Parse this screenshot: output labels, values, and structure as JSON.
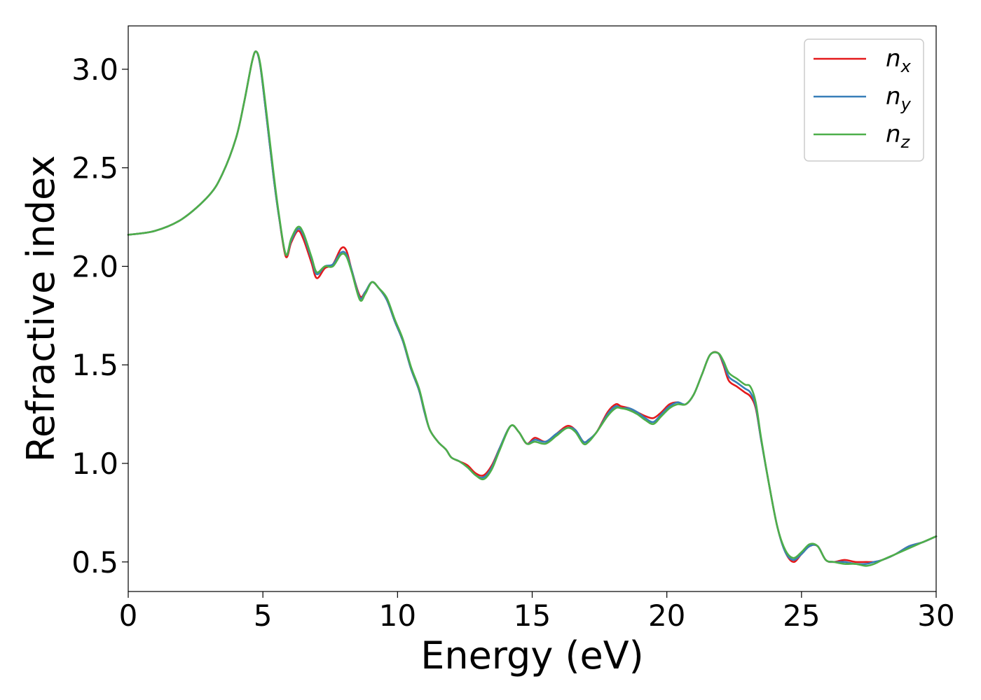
{
  "chart_data": {
    "type": "line",
    "xlabel": "Energy (eV)",
    "ylabel": "Refractive index",
    "xlim": [
      0,
      30
    ],
    "ylim": [
      0.35,
      3.22
    ],
    "xticks": [
      0,
      5,
      10,
      15,
      20,
      25,
      30
    ],
    "xtick_labels": [
      "0",
      "5",
      "10",
      "15",
      "20",
      "25",
      "30"
    ],
    "yticks": [
      0.5,
      1.0,
      1.5,
      2.0,
      2.5,
      3.0
    ],
    "ytick_labels": [
      "0.5",
      "1.0",
      "1.5",
      "2.0",
      "2.5",
      "3.0"
    ],
    "grid": false,
    "legend_position": "top-right",
    "series": [
      {
        "name": "n_x",
        "label_main": "n",
        "label_sub": "x",
        "color": "#e41a1c",
        "x": [
          0,
          1,
          2,
          3,
          3.5,
          4,
          4.3,
          4.6,
          4.75,
          4.9,
          5.1,
          5.4,
          5.6,
          5.85,
          6.05,
          6.3,
          6.5,
          6.8,
          7.0,
          7.3,
          7.6,
          7.9,
          8.1,
          8.3,
          8.6,
          8.8,
          9.05,
          9.3,
          9.6,
          9.9,
          10.2,
          10.5,
          10.8,
          11.0,
          11.2,
          11.5,
          11.8,
          12.0,
          12.3,
          12.6,
          12.9,
          13.2,
          13.5,
          13.8,
          14.2,
          14.5,
          14.8,
          15.1,
          15.5,
          15.9,
          16.3,
          16.6,
          16.9,
          17.1,
          17.4,
          17.8,
          18.1,
          18.3,
          18.6,
          18.9,
          19.2,
          19.5,
          19.8,
          20.1,
          20.4,
          20.7,
          21.0,
          21.3,
          21.6,
          21.9,
          22.1,
          22.3,
          22.6,
          22.9,
          23.1,
          23.3,
          23.5,
          23.8,
          24.1,
          24.4,
          24.7,
          25.0,
          25.3,
          25.6,
          25.9,
          26.2,
          26.6,
          27.0,
          27.4,
          27.7,
          28.0,
          28.5,
          29.0,
          29.5,
          30.0
        ],
        "y": [
          2.16,
          2.18,
          2.24,
          2.36,
          2.47,
          2.65,
          2.83,
          3.04,
          3.09,
          3.02,
          2.8,
          2.45,
          2.25,
          2.05,
          2.12,
          2.18,
          2.14,
          2.02,
          1.94,
          1.99,
          2.01,
          2.09,
          2.08,
          1.98,
          1.85,
          1.87,
          1.92,
          1.89,
          1.83,
          1.72,
          1.62,
          1.48,
          1.37,
          1.26,
          1.17,
          1.11,
          1.07,
          1.03,
          1.01,
          0.99,
          0.95,
          0.94,
          0.99,
          1.08,
          1.19,
          1.16,
          1.1,
          1.13,
          1.11,
          1.15,
          1.19,
          1.17,
          1.11,
          1.12,
          1.16,
          1.26,
          1.3,
          1.29,
          1.28,
          1.26,
          1.24,
          1.23,
          1.26,
          1.3,
          1.31,
          1.3,
          1.35,
          1.45,
          1.55,
          1.56,
          1.5,
          1.42,
          1.39,
          1.36,
          1.34,
          1.28,
          1.12,
          0.89,
          0.68,
          0.55,
          0.5,
          0.54,
          0.58,
          0.58,
          0.51,
          0.5,
          0.51,
          0.5,
          0.5,
          0.5,
          0.51,
          0.54,
          0.58,
          0.6,
          0.63
        ]
      },
      {
        "name": "n_y",
        "label_main": "n",
        "label_sub": "y",
        "color": "#377eb8",
        "x": [
          0,
          1,
          2,
          3,
          3.5,
          4,
          4.3,
          4.6,
          4.75,
          4.9,
          5.1,
          5.4,
          5.6,
          5.85,
          6.05,
          6.3,
          6.5,
          6.8,
          7.0,
          7.3,
          7.6,
          7.9,
          8.1,
          8.3,
          8.6,
          8.8,
          9.05,
          9.3,
          9.6,
          9.9,
          10.2,
          10.5,
          10.8,
          11.0,
          11.2,
          11.5,
          11.8,
          12.0,
          12.3,
          12.6,
          12.9,
          13.2,
          13.5,
          13.8,
          14.2,
          14.5,
          14.8,
          15.1,
          15.5,
          15.9,
          16.3,
          16.6,
          16.9,
          17.1,
          17.4,
          17.8,
          18.1,
          18.3,
          18.6,
          18.9,
          19.2,
          19.5,
          19.8,
          20.1,
          20.4,
          20.7,
          21.0,
          21.3,
          21.6,
          21.9,
          22.1,
          22.3,
          22.6,
          22.9,
          23.1,
          23.3,
          23.5,
          23.8,
          24.1,
          24.4,
          24.7,
          25.0,
          25.3,
          25.6,
          25.9,
          26.2,
          26.6,
          27.0,
          27.4,
          27.7,
          28.0,
          28.5,
          29.0,
          29.5,
          30.0
        ],
        "y": [
          2.16,
          2.18,
          2.24,
          2.36,
          2.47,
          2.65,
          2.83,
          3.04,
          3.09,
          3.02,
          2.8,
          2.45,
          2.25,
          2.06,
          2.13,
          2.19,
          2.16,
          2.04,
          1.96,
          2.0,
          2.01,
          2.07,
          2.06,
          1.98,
          1.84,
          1.87,
          1.92,
          1.89,
          1.83,
          1.72,
          1.62,
          1.48,
          1.37,
          1.26,
          1.17,
          1.11,
          1.07,
          1.03,
          1.01,
          0.98,
          0.94,
          0.93,
          0.98,
          1.08,
          1.19,
          1.16,
          1.1,
          1.12,
          1.11,
          1.15,
          1.18,
          1.17,
          1.11,
          1.12,
          1.16,
          1.25,
          1.29,
          1.28,
          1.28,
          1.26,
          1.23,
          1.21,
          1.25,
          1.29,
          1.31,
          1.3,
          1.35,
          1.45,
          1.55,
          1.56,
          1.51,
          1.44,
          1.41,
          1.38,
          1.36,
          1.29,
          1.12,
          0.89,
          0.68,
          0.55,
          0.51,
          0.54,
          0.58,
          0.58,
          0.51,
          0.5,
          0.5,
          0.49,
          0.49,
          0.5,
          0.51,
          0.54,
          0.58,
          0.6,
          0.63
        ]
      },
      {
        "name": "n_z",
        "label_main": "n",
        "label_sub": "z",
        "color": "#4daf4a",
        "x": [
          0,
          1,
          2,
          3,
          3.5,
          4,
          4.3,
          4.6,
          4.75,
          4.9,
          5.1,
          5.4,
          5.6,
          5.85,
          6.05,
          6.3,
          6.5,
          6.8,
          7.0,
          7.3,
          7.6,
          7.9,
          8.1,
          8.3,
          8.6,
          8.8,
          9.05,
          9.3,
          9.6,
          9.9,
          10.2,
          10.5,
          10.8,
          11.0,
          11.2,
          11.5,
          11.8,
          12.0,
          12.3,
          12.6,
          12.9,
          13.2,
          13.5,
          13.8,
          14.2,
          14.5,
          14.8,
          15.1,
          15.5,
          15.9,
          16.3,
          16.6,
          16.9,
          17.1,
          17.4,
          17.8,
          18.1,
          18.3,
          18.6,
          18.9,
          19.2,
          19.5,
          19.8,
          20.1,
          20.4,
          20.7,
          21.0,
          21.3,
          21.6,
          21.9,
          22.1,
          22.3,
          22.6,
          22.9,
          23.1,
          23.3,
          23.5,
          23.8,
          24.1,
          24.4,
          24.7,
          25.0,
          25.3,
          25.6,
          25.9,
          26.2,
          26.6,
          27.0,
          27.4,
          27.7,
          28.0,
          28.5,
          29.0,
          29.5,
          30.0
        ],
        "y": [
          2.16,
          2.18,
          2.24,
          2.36,
          2.47,
          2.65,
          2.83,
          3.04,
          3.09,
          3.03,
          2.82,
          2.47,
          2.26,
          2.06,
          2.14,
          2.2,
          2.17,
          2.05,
          1.97,
          2.0,
          2.0,
          2.06,
          2.05,
          1.97,
          1.83,
          1.86,
          1.92,
          1.89,
          1.84,
          1.73,
          1.63,
          1.49,
          1.38,
          1.27,
          1.17,
          1.11,
          1.07,
          1.03,
          1.01,
          0.98,
          0.94,
          0.92,
          0.97,
          1.07,
          1.19,
          1.16,
          1.1,
          1.11,
          1.1,
          1.14,
          1.18,
          1.16,
          1.1,
          1.11,
          1.16,
          1.24,
          1.28,
          1.28,
          1.27,
          1.25,
          1.22,
          1.2,
          1.24,
          1.28,
          1.3,
          1.3,
          1.35,
          1.45,
          1.55,
          1.56,
          1.52,
          1.46,
          1.43,
          1.4,
          1.39,
          1.31,
          1.13,
          0.89,
          0.68,
          0.56,
          0.52,
          0.55,
          0.59,
          0.58,
          0.51,
          0.5,
          0.49,
          0.49,
          0.48,
          0.49,
          0.51,
          0.54,
          0.57,
          0.6,
          0.63
        ]
      }
    ]
  }
}
